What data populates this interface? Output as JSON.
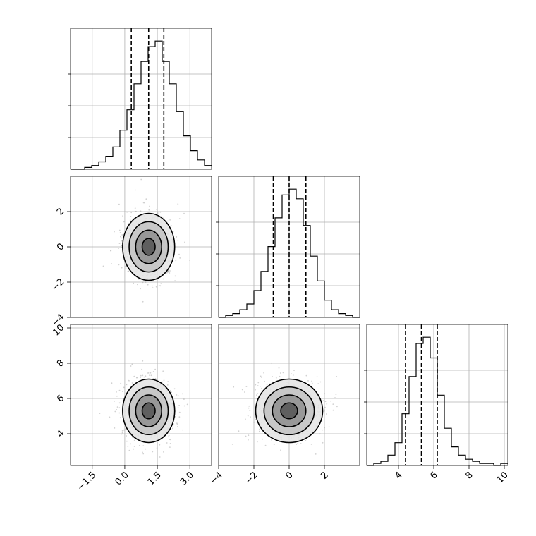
{
  "chart_data": {
    "type": "corner",
    "parameters": [
      {
        "range": [
          -2.5,
          4.0
        ],
        "ticks": [
          -1.5,
          0.0,
          1.5,
          3.0
        ],
        "tick_labels": [
          "−1.5",
          "0.0",
          "1.5",
          "3.0"
        ],
        "hist_edges_start": -2.5,
        "bin_width": 0.325,
        "hist_counts": [
          0,
          0,
          1,
          2,
          4,
          7,
          12,
          21,
          32,
          46,
          58,
          66,
          69,
          58,
          46,
          31,
          18,
          10,
          5,
          2
        ],
        "quantiles": [
          0.3,
          1.1,
          1.8
        ]
      },
      {
        "range": [
          -4.0,
          4.0
        ],
        "ticks": [
          -4,
          -2,
          0,
          2
        ],
        "tick_labels": [
          "−4",
          "−2",
          "0",
          "2"
        ],
        "hist_edges_start": -4.0,
        "bin_width": 0.4,
        "hist_counts": [
          0,
          1,
          2,
          4,
          7,
          14,
          24,
          37,
          52,
          64,
          67,
          62,
          48,
          32,
          19,
          9,
          4,
          2,
          1,
          0
        ],
        "quantiles": [
          -0.9,
          0.0,
          0.95
        ]
      },
      {
        "range": [
          2.2,
          10.2
        ],
        "ticks": [
          4,
          6,
          8,
          10
        ],
        "tick_labels": [
          "4",
          "6",
          "8",
          "10"
        ],
        "hist_edges_start": 2.2,
        "bin_width": 0.4,
        "hist_counts": [
          0,
          1,
          2,
          5,
          11,
          25,
          43,
          59,
          62,
          52,
          34,
          18,
          9,
          5,
          3,
          2,
          1,
          1,
          0,
          1
        ],
        "quantiles": [
          4.4,
          5.3,
          6.2
        ]
      }
    ],
    "pairs": [
      {
        "x_param": 0,
        "y_param": 1,
        "center": [
          1.1,
          0.0
        ],
        "std": [
          0.6,
          0.95
        ],
        "contour_levels": [
          0.5,
          1.0,
          1.5,
          2.0
        ]
      },
      {
        "x_param": 0,
        "y_param": 2,
        "center": [
          1.1,
          5.3
        ],
        "std": [
          0.6,
          0.9
        ],
        "contour_levels": [
          0.5,
          1.0,
          1.5,
          2.0
        ]
      },
      {
        "x_param": 1,
        "y_param": 2,
        "center": [
          0.0,
          5.3
        ],
        "std": [
          0.95,
          0.9
        ],
        "contour_levels": [
          0.5,
          1.0,
          1.5,
          2.0
        ]
      }
    ],
    "grid": true,
    "colors": {
      "line": "#000000",
      "points": "#9a9a9a",
      "grid": "#b0b0b0"
    }
  }
}
